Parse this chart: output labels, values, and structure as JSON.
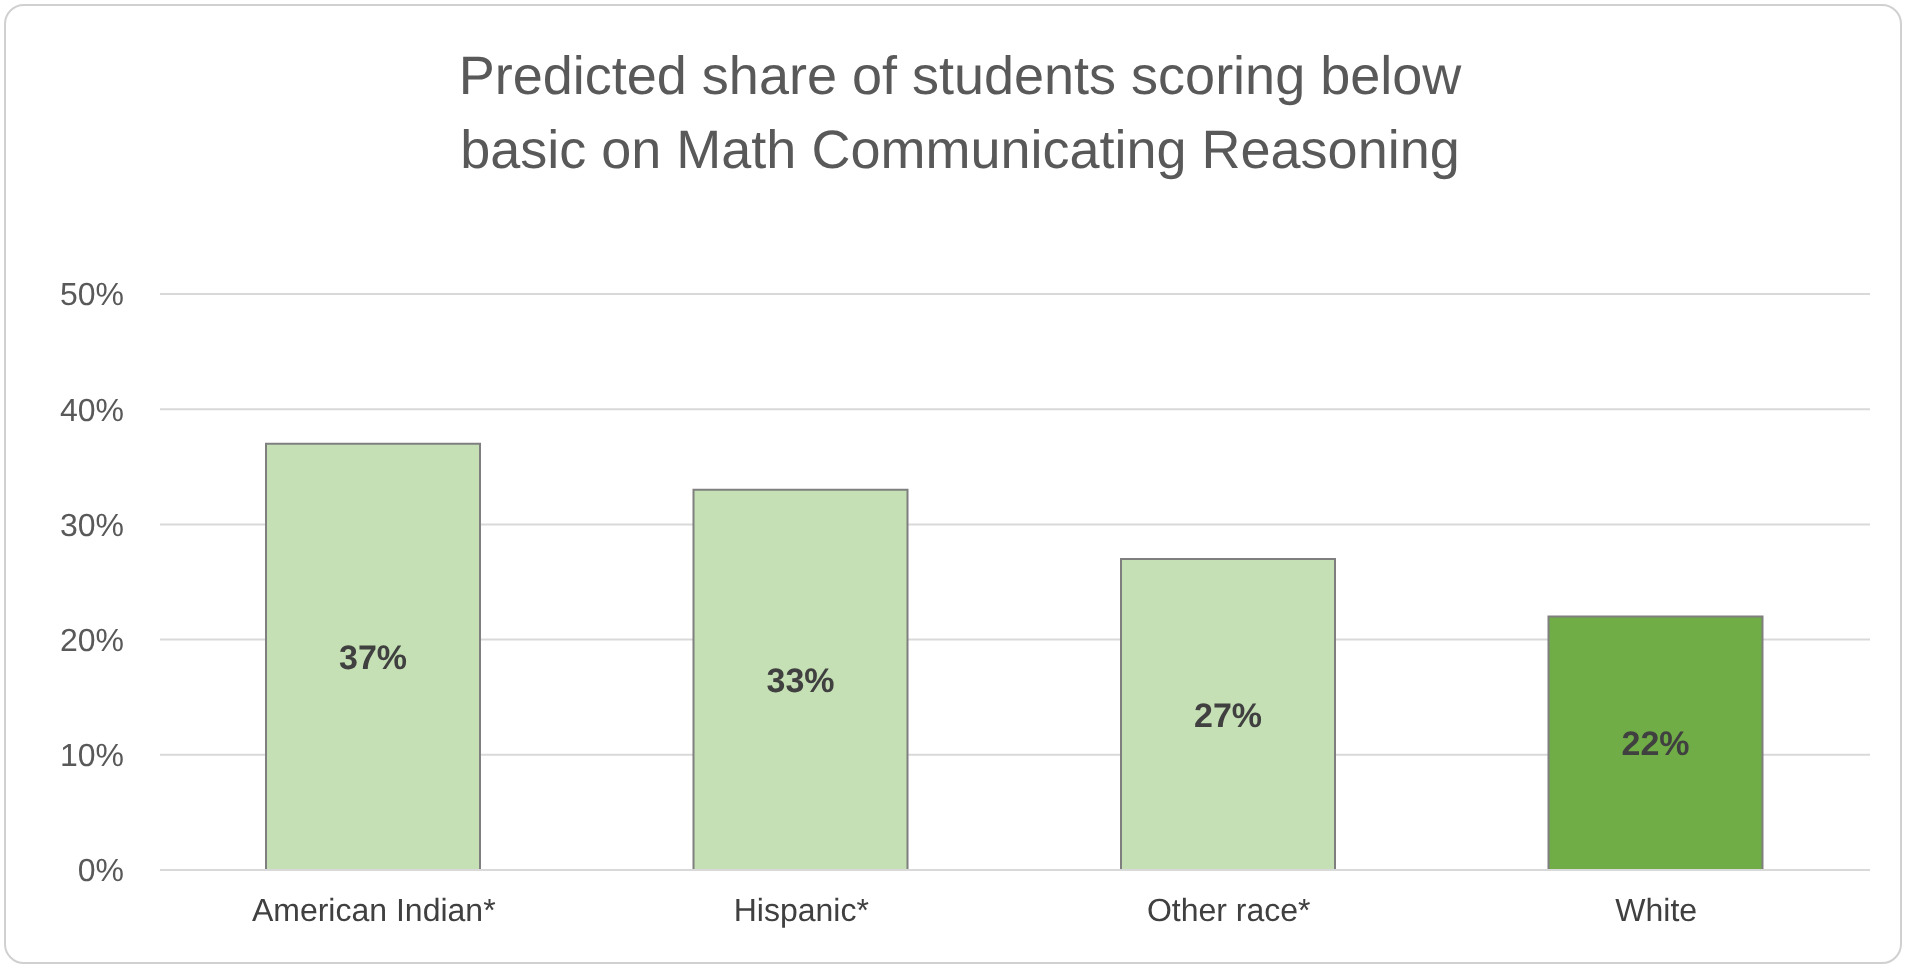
{
  "chart_data": {
    "type": "bar",
    "title": "Predicted share of students scoring below basic on Math Communicating Reasoning",
    "categories": [
      "American Indian*",
      "Hispanic*",
      "Other race*",
      "White"
    ],
    "values": [
      37,
      33,
      27,
      22
    ],
    "colors": [
      "#c5e0b4",
      "#c5e0b4",
      "#c5e0b4",
      "#70ad47"
    ],
    "value_labels": [
      "37%",
      "33%",
      "27%",
      "22%"
    ],
    "ylim": [
      0,
      50
    ],
    "yticks": [
      {
        "value": 0,
        "label": "0%"
      },
      {
        "value": 10,
        "label": "10%"
      },
      {
        "value": 20,
        "label": "20%"
      },
      {
        "value": 30,
        "label": "30%"
      },
      {
        "value": 40,
        "label": "40%"
      },
      {
        "value": 50,
        "label": "50%"
      }
    ],
    "grid": "y",
    "legend": false
  }
}
